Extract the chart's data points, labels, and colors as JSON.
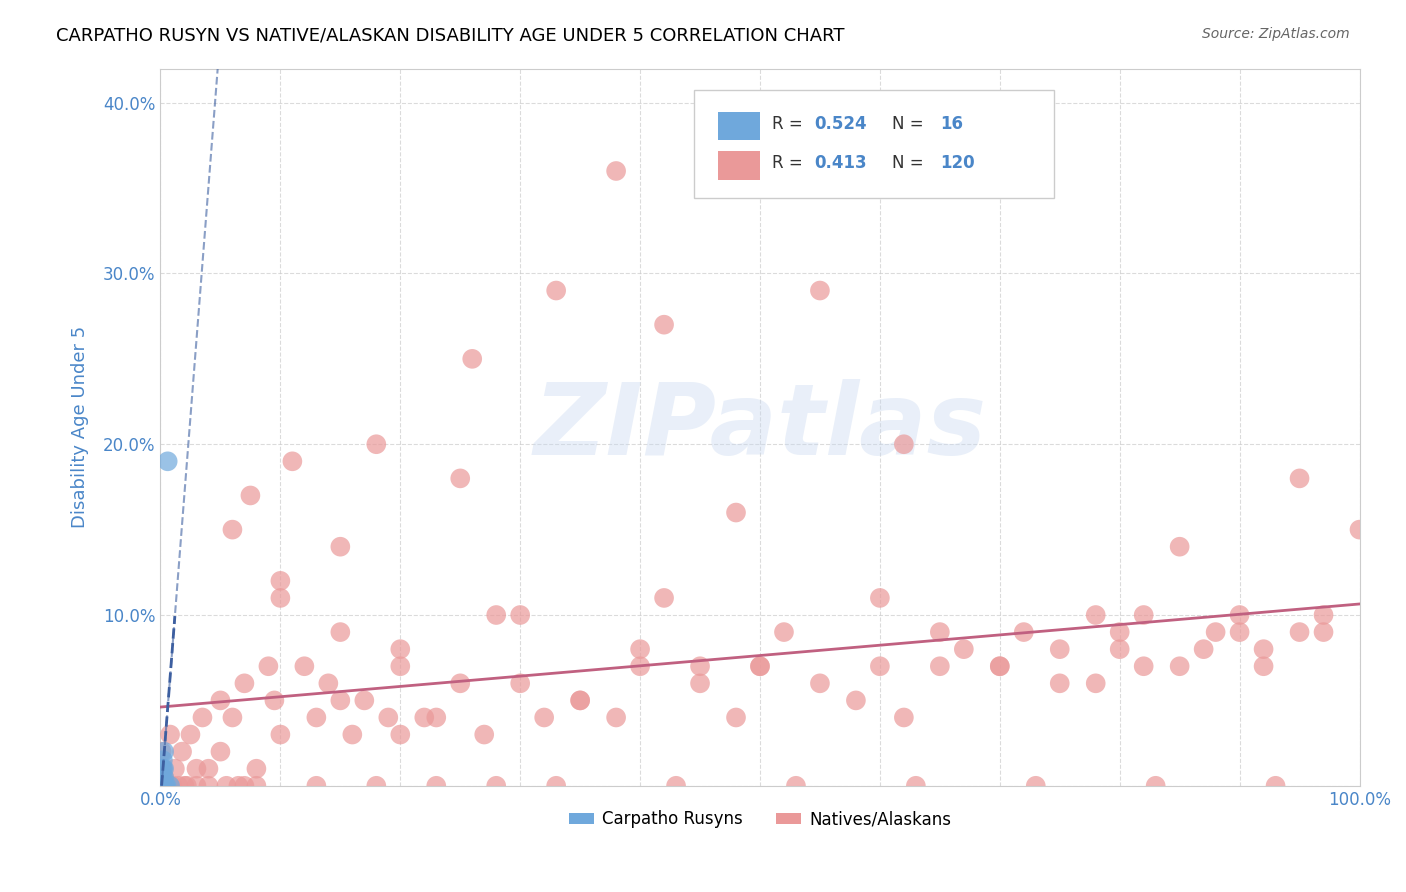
{
  "title": "CARPATHO RUSYN VS NATIVE/ALASKAN DISABILITY AGE UNDER 5 CORRELATION CHART",
  "source": "Source: ZipAtlas.com",
  "xlabel": "",
  "ylabel": "Disability Age Under 5",
  "xlim": [
    0,
    1.0
  ],
  "ylim": [
    0,
    0.42
  ],
  "xticks": [
    0,
    0.1,
    0.2,
    0.3,
    0.4,
    0.5,
    0.6,
    0.7,
    0.8,
    0.9,
    1.0
  ],
  "xtick_labels": [
    "0.0%",
    "",
    "",
    "",
    "",
    "",
    "",
    "",
    "",
    "",
    "100.0%"
  ],
  "yticks": [
    0,
    0.1,
    0.2,
    0.3,
    0.4
  ],
  "ytick_labels": [
    "",
    "10.0%",
    "20.0%",
    "30.0%",
    "40.0%"
  ],
  "legend_r1": "R = 0.524",
  "legend_n1": "N =  16",
  "legend_r2": "R = 0.413",
  "legend_n2": "N = 120",
  "blue_color": "#6fa8dc",
  "pink_color": "#ea9999",
  "blue_line_color": "#3d5fa0",
  "pink_line_color": "#c06080",
  "watermark": "ZIPatlas",
  "background_color": "#ffffff",
  "grid_color": "#cccccc",
  "title_color": "#000000",
  "axis_label_color": "#4a86c8",
  "tick_color": "#4a86c8",
  "rusyn_points_x": [
    0.001,
    0.001,
    0.001,
    0.001,
    0.001,
    0.002,
    0.002,
    0.002,
    0.002,
    0.003,
    0.003,
    0.003,
    0.004,
    0.005,
    0.006,
    0.008
  ],
  "rusyn_points_y": [
    0.0,
    0.0,
    0.0,
    0.005,
    0.01,
    0.0,
    0.005,
    0.01,
    0.015,
    0.005,
    0.01,
    0.02,
    0.0,
    0.0,
    0.19,
    0.0
  ],
  "native_points_x": [
    0.001,
    0.002,
    0.003,
    0.005,
    0.006,
    0.007,
    0.008,
    0.01,
    0.012,
    0.015,
    0.018,
    0.02,
    0.022,
    0.025,
    0.03,
    0.035,
    0.04,
    0.04,
    0.05,
    0.05,
    0.055,
    0.06,
    0.06,
    0.065,
    0.07,
    0.075,
    0.08,
    0.08,
    0.09,
    0.095,
    0.1,
    0.1,
    0.11,
    0.12,
    0.13,
    0.14,
    0.15,
    0.15,
    0.16,
    0.17,
    0.18,
    0.19,
    0.2,
    0.2,
    0.22,
    0.23,
    0.25,
    0.26,
    0.27,
    0.28,
    0.3,
    0.32,
    0.33,
    0.35,
    0.38,
    0.4,
    0.42,
    0.45,
    0.48,
    0.5,
    0.52,
    0.55,
    0.58,
    0.6,
    0.62,
    0.65,
    0.67,
    0.7,
    0.72,
    0.75,
    0.78,
    0.8,
    0.82,
    0.85,
    0.88,
    0.9,
    0.92,
    0.95,
    0.97,
    1.0,
    0.38,
    0.42,
    0.55,
    0.62,
    0.7,
    0.8,
    0.85,
    0.9,
    0.95,
    0.1,
    0.15,
    0.2,
    0.25,
    0.3,
    0.35,
    0.4,
    0.45,
    0.5,
    0.6,
    0.65,
    0.75,
    0.78,
    0.82,
    0.87,
    0.92,
    0.97,
    0.03,
    0.07,
    0.13,
    0.18,
    0.23,
    0.28,
    0.33,
    0.43,
    0.53,
    0.63,
    0.73,
    0.83,
    0.93,
    0.48
  ],
  "native_points_y": [
    0.02,
    0.01,
    0.005,
    0.0,
    0.0,
    0.0,
    0.03,
    0.0,
    0.01,
    0.0,
    0.02,
    0.0,
    0.0,
    0.03,
    0.0,
    0.04,
    0.0,
    0.01,
    0.05,
    0.02,
    0.0,
    0.04,
    0.15,
    0.0,
    0.06,
    0.17,
    0.0,
    0.01,
    0.07,
    0.05,
    0.03,
    0.12,
    0.19,
    0.07,
    0.04,
    0.06,
    0.05,
    0.14,
    0.03,
    0.05,
    0.2,
    0.04,
    0.03,
    0.08,
    0.04,
    0.04,
    0.18,
    0.25,
    0.03,
    0.1,
    0.06,
    0.04,
    0.29,
    0.05,
    0.04,
    0.07,
    0.11,
    0.06,
    0.04,
    0.07,
    0.09,
    0.06,
    0.05,
    0.11,
    0.04,
    0.07,
    0.08,
    0.07,
    0.09,
    0.06,
    0.1,
    0.08,
    0.07,
    0.14,
    0.09,
    0.1,
    0.08,
    0.09,
    0.1,
    0.15,
    0.36,
    0.27,
    0.29,
    0.2,
    0.07,
    0.09,
    0.07,
    0.09,
    0.18,
    0.11,
    0.09,
    0.07,
    0.06,
    0.1,
    0.05,
    0.08,
    0.07,
    0.07,
    0.07,
    0.09,
    0.08,
    0.06,
    0.1,
    0.08,
    0.07,
    0.09,
    0.01,
    0.0,
    0.0,
    0.0,
    0.0,
    0.0,
    0.0,
    0.0,
    0.0,
    0.0,
    0.0,
    0.0,
    0.0,
    0.16
  ]
}
